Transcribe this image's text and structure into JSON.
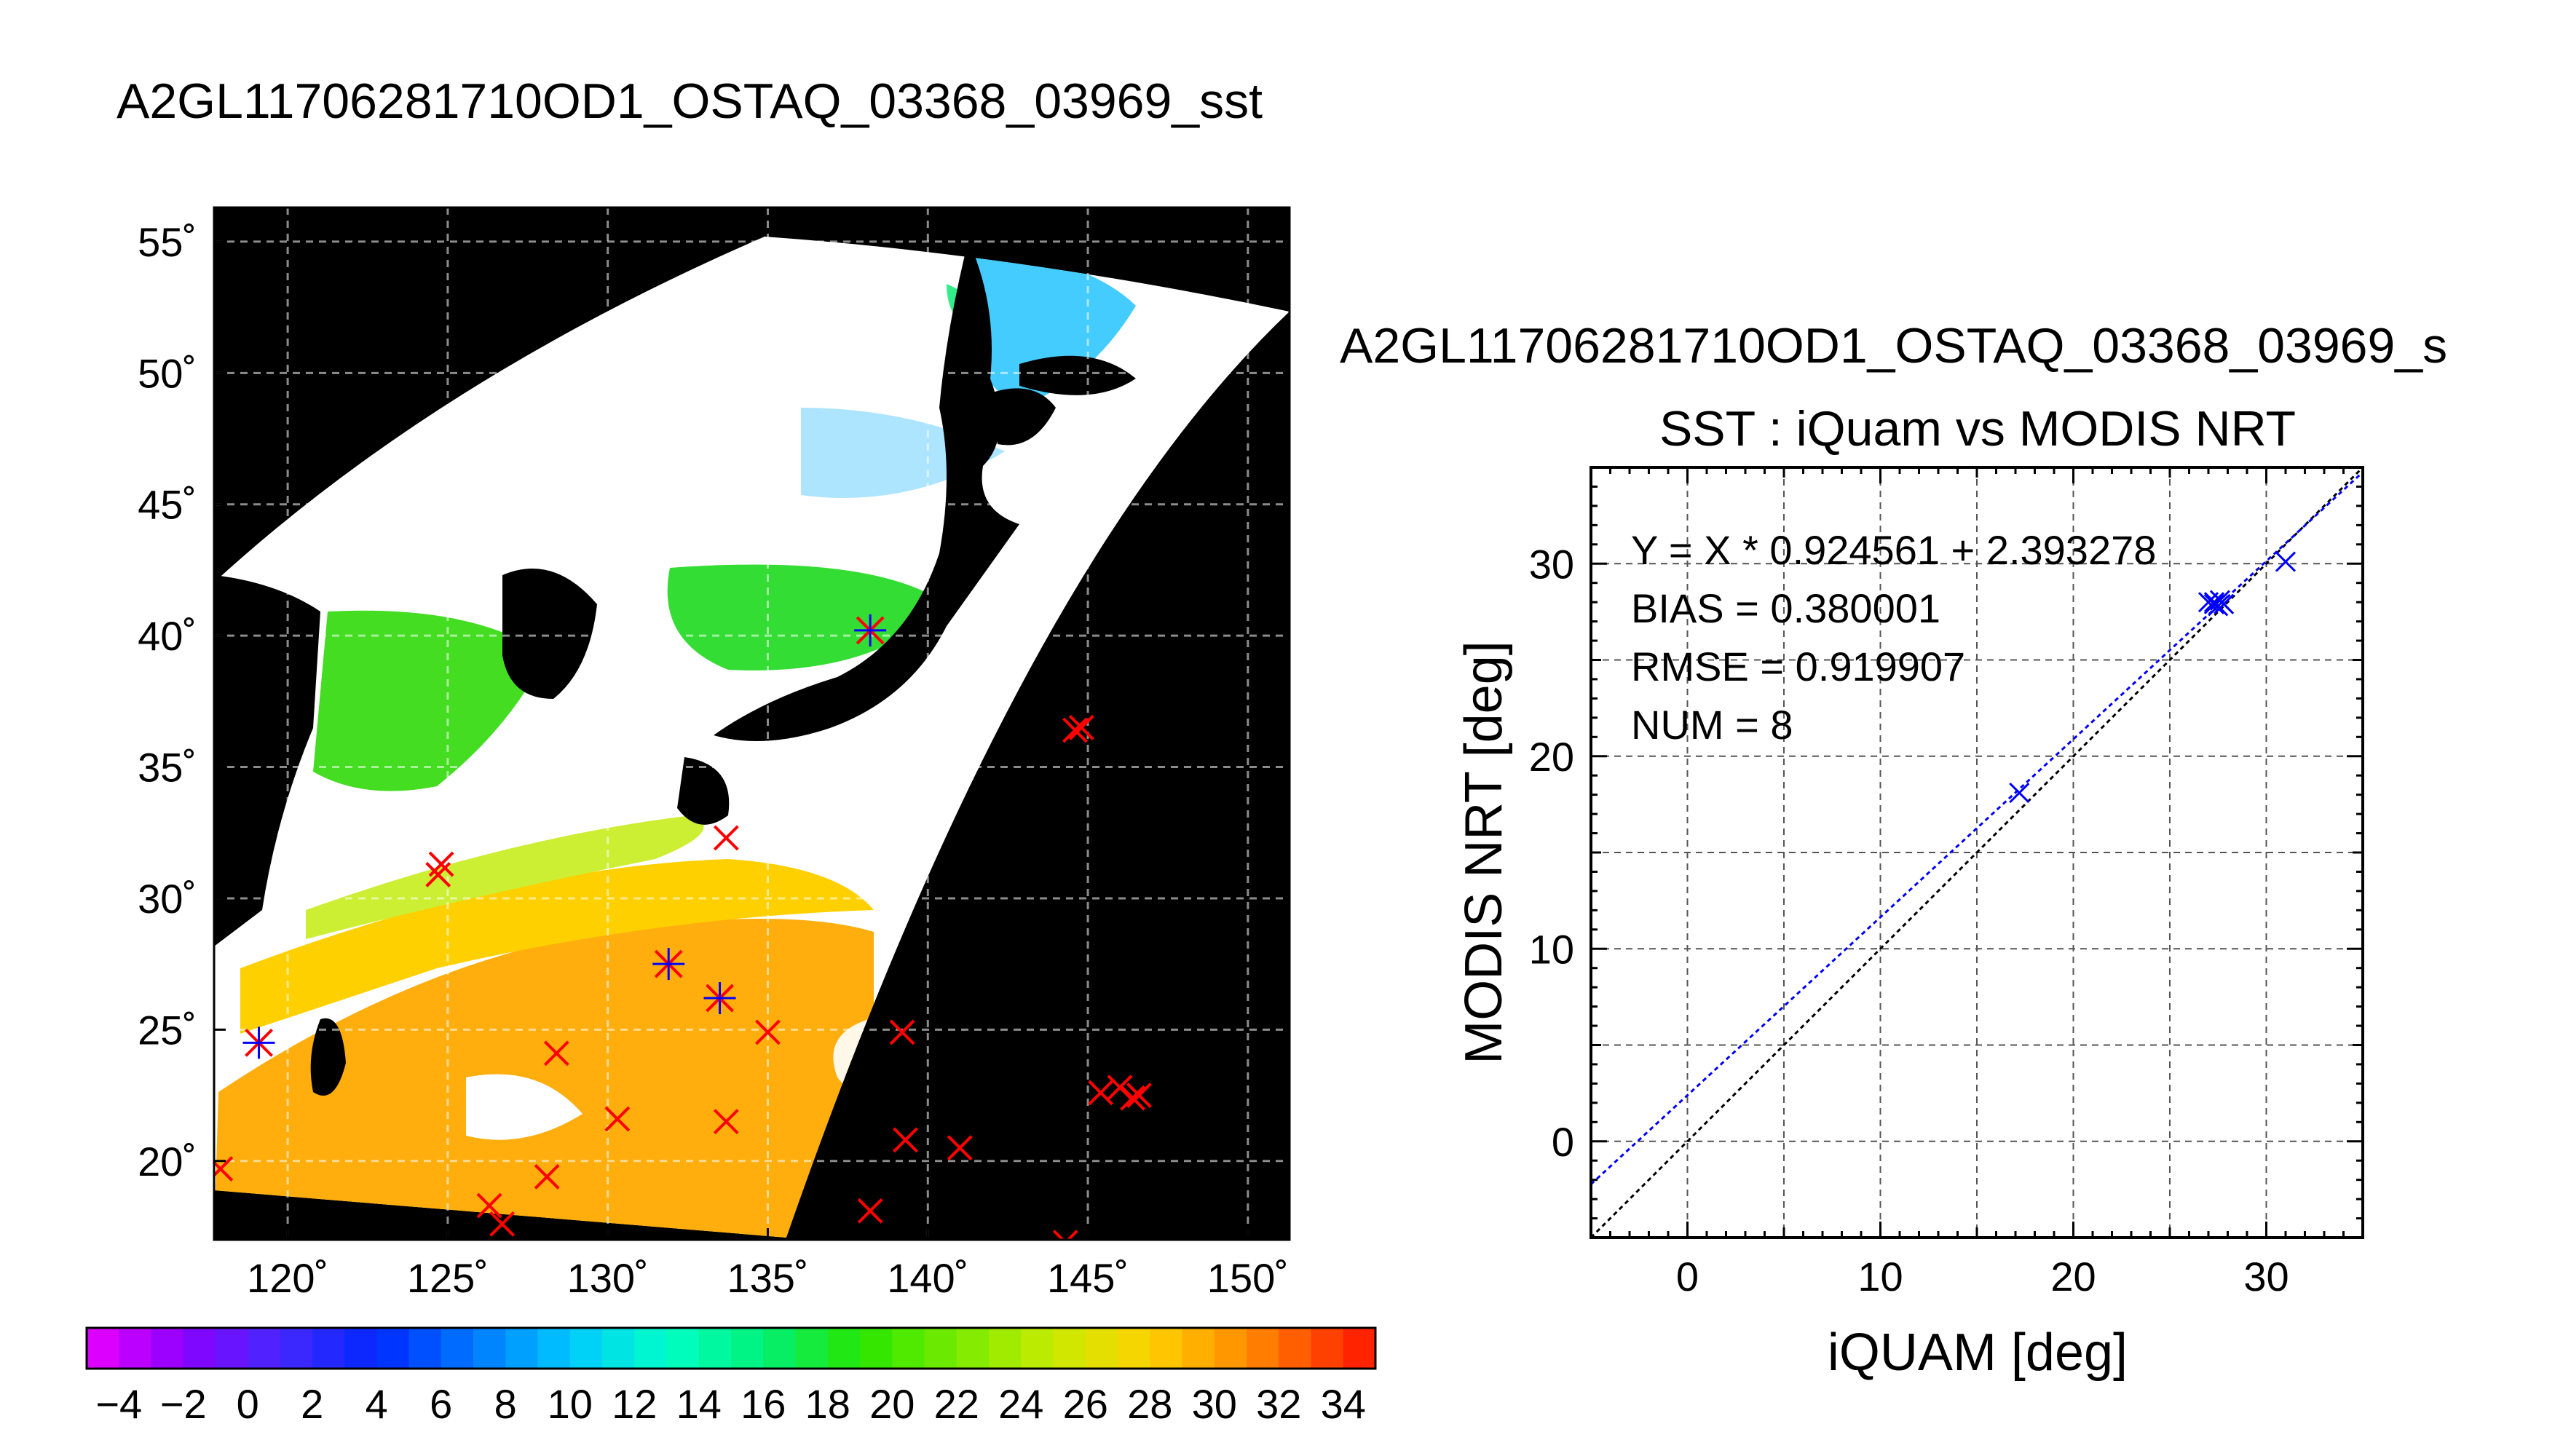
{
  "figure_title": "A2GL11706281710OD1_OSTAQ_03368_03969_sst",
  "map": {
    "lat_tick_labels": [
      "55˚",
      "50˚",
      "45˚",
      "40˚",
      "35˚",
      "30˚",
      "25˚",
      "20˚"
    ],
    "lon_tick_labels": [
      "120˚",
      "125˚",
      "130˚",
      "135˚",
      "140˚",
      "145˚",
      "150˚"
    ],
    "lon_range": [
      117.7,
      151.3
    ],
    "lat_range": [
      17.0,
      56.3
    ],
    "background_color": "#000000",
    "no_data_color": "#ffffff",
    "marker_colors": {
      "outside": "#ff0000",
      "matched": "#0000ff"
    },
    "red_markers": [
      [
        124.8,
        31.3
      ],
      [
        124.7,
        30.9
      ],
      [
        133.7,
        32.3
      ],
      [
        144.6,
        36.4
      ],
      [
        144.8,
        36.5
      ],
      [
        128.4,
        24.1
      ],
      [
        130.3,
        21.6
      ],
      [
        128.1,
        19.4
      ],
      [
        126.3,
        18.3
      ],
      [
        126.7,
        17.6
      ],
      [
        133.7,
        21.5
      ],
      [
        135.0,
        24.9
      ],
      [
        139.2,
        24.9
      ],
      [
        139.3,
        20.8
      ],
      [
        141.0,
        20.5
      ],
      [
        138.2,
        18.1
      ],
      [
        144.3,
        16.9
      ],
      [
        145.4,
        22.6
      ],
      [
        146.0,
        22.8
      ],
      [
        146.4,
        22.4
      ],
      [
        146.6,
        22.5
      ],
      [
        117.9,
        19.7
      ]
    ],
    "matched_markers": [
      [
        138.2,
        40.2
      ],
      [
        131.9,
        27.5
      ],
      [
        133.5,
        26.2
      ],
      [
        119.1,
        24.5
      ]
    ]
  },
  "colorbar": {
    "min": -5,
    "max": 35,
    "tick_labels": [
      "−4",
      "−2",
      "0",
      "2",
      "4",
      "6",
      "8",
      "10",
      "12",
      "14",
      "16",
      "18",
      "20",
      "22",
      "24",
      "26",
      "28",
      "30",
      "32",
      "34"
    ],
    "tick_values": [
      -4,
      -2,
      0,
      2,
      4,
      6,
      8,
      10,
      12,
      14,
      16,
      18,
      20,
      22,
      24,
      26,
      28,
      30,
      32,
      34
    ]
  },
  "scatter": {
    "title_line1": "A2GL11706281710OD1_OSTAQ_03368_03969_s",
    "title_line2": "SST : iQuam vs MODIS NRT",
    "stats": [
      "Y = X * 0.924561 + 2.393278",
      "BIAS = 0.380001",
      "RMSE = 0.919907",
      "NUM = 8"
    ]
  },
  "chart_data": {
    "type": "scatter",
    "title": "SST : iQuam vs MODIS NRT",
    "xlabel": "iQUAM [deg]",
    "ylabel": "MODIS NRT [deg]",
    "xlim": [
      -5,
      35
    ],
    "ylim": [
      -5,
      35
    ],
    "x_ticks": [
      0,
      10,
      20,
      30
    ],
    "y_ticks": [
      0,
      10,
      20,
      30
    ],
    "grid": true,
    "points": [
      {
        "x": 17.2,
        "y": 18.1
      },
      {
        "x": 27.0,
        "y": 28.0
      },
      {
        "x": 27.3,
        "y": 28.0
      },
      {
        "x": 27.5,
        "y": 27.8
      },
      {
        "x": 27.8,
        "y": 27.9
      },
      {
        "x": 27.3,
        "y": 27.9
      },
      {
        "x": 27.6,
        "y": 28.1
      },
      {
        "x": 31.0,
        "y": 30.1
      }
    ],
    "fit_line": {
      "slope": 0.924561,
      "intercept": 2.393278,
      "color": "#0000ff"
    },
    "identity_line": {
      "color": "#000000"
    }
  }
}
